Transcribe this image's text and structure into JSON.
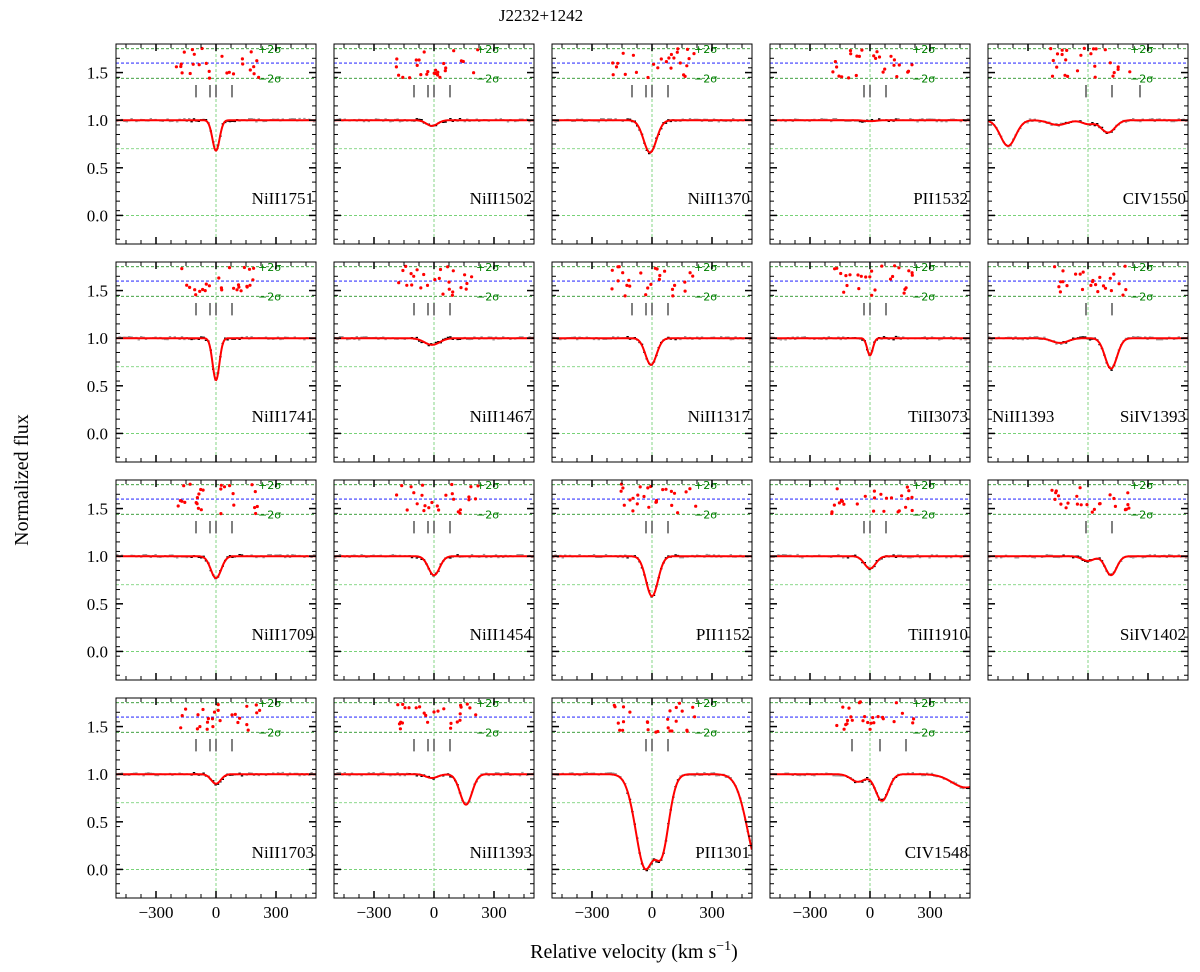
{
  "chart_data": {
    "type": "line",
    "title": "J2232+1242",
    "xlabel": "Relative velocity (km s$^{-1}$)",
    "xlabel_main": "Relative velocity (km s",
    "xlabel_sup": "−1",
    "xlabel_close": ")",
    "ylabel": "Normalized flux",
    "xlim": [
      -500,
      500
    ],
    "ylim": [
      -0.3,
      1.8
    ],
    "xticks": [
      -300,
      0,
      300
    ],
    "xtick_labels": [
      "−300",
      "0",
      "300"
    ],
    "yticks": [
      0.0,
      0.5,
      1.0,
      1.5
    ],
    "ytick_labels": [
      "0.0",
      "0.5",
      "1.0",
      "1.5"
    ],
    "guide_levels": {
      "sigma_plus": 1.75,
      "residual_zero": 1.6,
      "sigma_minus": 1.44,
      "lower_guide": 0.7,
      "zero": 0.0
    },
    "sigma_labels": {
      "plus": "+2σ",
      "minus": "−2σ"
    },
    "colors": {
      "model": "#ff0000",
      "data_fit": "#000000",
      "data_outside": "#999999",
      "residuals": "#ff0000",
      "sigma_lines": "#008000",
      "zero_line": "#0000ff",
      "guides": "#66cc66"
    },
    "panels": [
      {
        "label": "NiII1751",
        "col": 0,
        "row": 0,
        "ticks": [
          -100,
          -30,
          0,
          80
        ],
        "components": [
          {
            "v": 0,
            "depth": 0.32,
            "width": 18
          }
        ]
      },
      {
        "label": "NiII1502",
        "col": 1,
        "row": 0,
        "ticks": [
          -100,
          -30,
          0,
          80
        ],
        "components": [
          {
            "v": -10,
            "depth": 0.06,
            "width": 28
          }
        ]
      },
      {
        "label": "NiII1370",
        "col": 2,
        "row": 0,
        "ticks": [
          -100,
          -30,
          0,
          80
        ],
        "components": [
          {
            "v": -10,
            "depth": 0.34,
            "width": 32
          }
        ]
      },
      {
        "label": "PII1532",
        "col": 3,
        "row": 0,
        "ticks": [
          -30,
          0,
          80
        ],
        "components": [
          {
            "v": 0,
            "depth": 0.01,
            "width": 30
          }
        ]
      },
      {
        "label": "CIV1550",
        "col": 4,
        "row": 0,
        "ticks": [
          -10,
          120,
          260
        ],
        "components": [
          {
            "v": -400,
            "depth": 0.27,
            "width": 38
          },
          {
            "v": -150,
            "depth": 0.05,
            "width": 45
          },
          {
            "v": 0,
            "depth": 0.04,
            "width": 30
          },
          {
            "v": 100,
            "depth": 0.13,
            "width": 35
          }
        ]
      },
      {
        "label": "NiII1741",
        "col": 0,
        "row": 1,
        "ticks": [
          -100,
          -30,
          0,
          80
        ],
        "components": [
          {
            "v": 0,
            "depth": 0.44,
            "width": 17
          }
        ]
      },
      {
        "label": "NiII1467",
        "col": 1,
        "row": 1,
        "ticks": [
          -100,
          -30,
          0,
          80
        ],
        "components": [
          {
            "v": -10,
            "depth": 0.07,
            "width": 38
          }
        ]
      },
      {
        "label": "NiII1317",
        "col": 2,
        "row": 1,
        "ticks": [
          -100,
          -30,
          0,
          80
        ],
        "components": [
          {
            "v": -5,
            "depth": 0.28,
            "width": 28
          }
        ]
      },
      {
        "label": "TiII3073",
        "col": 3,
        "row": 1,
        "ticks": [
          -30,
          0,
          80
        ],
        "components": [
          {
            "v": 0,
            "depth": 0.18,
            "width": 14
          }
        ]
      },
      {
        "label": "NiII1393",
        "label2": "SiIV1393",
        "col": 4,
        "row": 1,
        "ticks": [
          -10,
          120
        ],
        "components": [
          {
            "v": -140,
            "depth": 0.05,
            "width": 40
          },
          {
            "v": 115,
            "depth": 0.32,
            "width": 30
          }
        ]
      },
      {
        "label": "NiII1709",
        "col": 0,
        "row": 2,
        "ticks": [
          -100,
          -30,
          0,
          80
        ],
        "components": [
          {
            "v": 0,
            "depth": 0.23,
            "width": 26
          }
        ]
      },
      {
        "label": "NiII1454",
        "col": 1,
        "row": 2,
        "ticks": [
          -100,
          -30,
          0,
          80
        ],
        "components": [
          {
            "v": 0,
            "depth": 0.2,
            "width": 28
          }
        ]
      },
      {
        "label": "PII1152",
        "col": 2,
        "row": 2,
        "ticks": [
          -30,
          0,
          80
        ],
        "components": [
          {
            "v": 0,
            "depth": 0.42,
            "width": 30
          }
        ]
      },
      {
        "label": "TiII1910",
        "col": 3,
        "row": 2,
        "ticks": [
          -30,
          0,
          80
        ],
        "components": [
          {
            "v": 0,
            "depth": 0.13,
            "width": 28
          }
        ]
      },
      {
        "label": "SiIV1402",
        "col": 4,
        "row": 2,
        "ticks": [
          -10,
          120
        ],
        "components": [
          {
            "v": 0,
            "depth": 0.05,
            "width": 30
          },
          {
            "v": 115,
            "depth": 0.2,
            "width": 28
          }
        ]
      },
      {
        "label": "NiII1703",
        "col": 0,
        "row": 3,
        "ticks": [
          -100,
          -30,
          0,
          80
        ],
        "components": [
          {
            "v": 0,
            "depth": 0.1,
            "width": 24
          }
        ]
      },
      {
        "label": "NiII1393",
        "col": 1,
        "row": 3,
        "ticks": [
          -100,
          -30,
          0,
          80
        ],
        "components": [
          {
            "v": 160,
            "depth": 0.32,
            "width": 30
          },
          {
            "v": -10,
            "depth": 0.04,
            "width": 30
          }
        ]
      },
      {
        "label": "PII1301",
        "col": 2,
        "row": 3,
        "ticks": [
          -30,
          0,
          80
        ],
        "components": [
          {
            "v": -30,
            "depth": 1.0,
            "width": 50
          },
          {
            "v": 40,
            "depth": 0.85,
            "width": 40
          },
          {
            "v": 540,
            "depth": 1.0,
            "width": 60
          }
        ]
      },
      {
        "label": "CIV1548",
        "col": 3,
        "row": 3,
        "ticks": [
          -90,
          50,
          180
        ],
        "components": [
          {
            "v": 60,
            "depth": 0.28,
            "width": 32
          },
          {
            "v": -60,
            "depth": 0.08,
            "width": 35
          },
          {
            "v": 480,
            "depth": 0.14,
            "width": 70
          }
        ]
      }
    ]
  }
}
